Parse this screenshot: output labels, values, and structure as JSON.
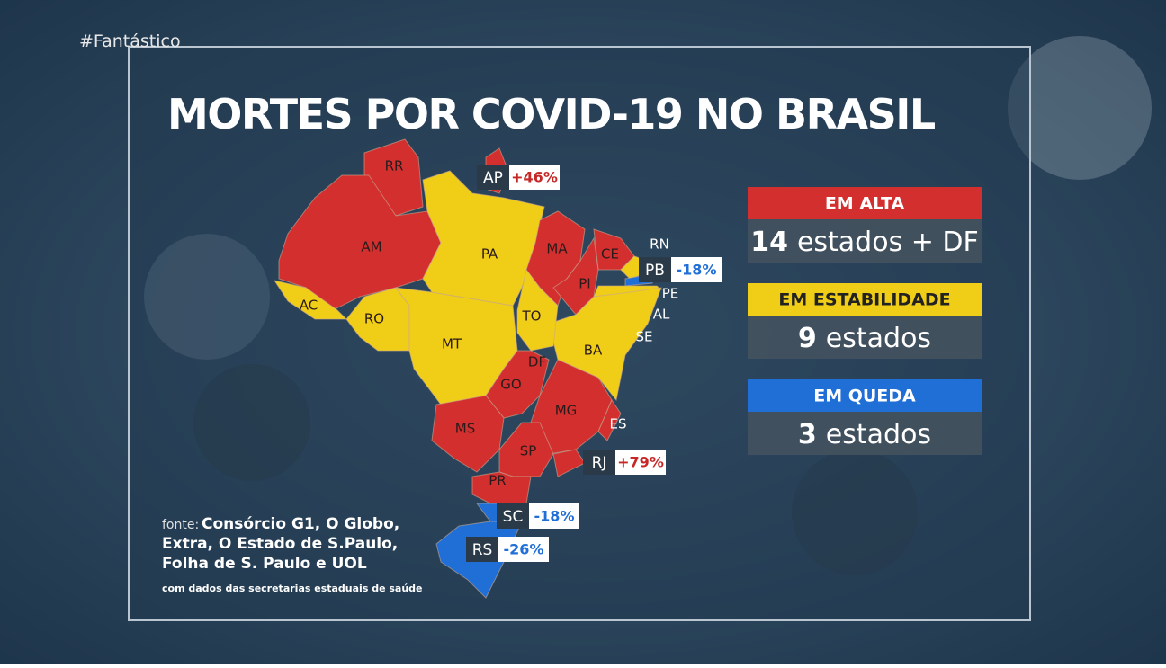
{
  "brand": "#Fantástico",
  "title": "MORTES POR COVID-19 NO BRASIL",
  "states": [
    {
      "label": "RR"
    },
    {
      "label": "AM"
    },
    {
      "label": "PA"
    },
    {
      "label": "AC"
    },
    {
      "label": "RO"
    },
    {
      "label": "MT"
    },
    {
      "label": "MA"
    },
    {
      "label": "CE"
    },
    {
      "label": "PI"
    },
    {
      "label": "TO"
    },
    {
      "label": "BA"
    },
    {
      "label": "DF"
    },
    {
      "label": "GO"
    },
    {
      "label": "MG"
    },
    {
      "label": "MS"
    },
    {
      "label": "SP"
    },
    {
      "label": "PR"
    },
    {
      "label": "RN"
    },
    {
      "label": "PE"
    },
    {
      "label": "AL"
    },
    {
      "label": "SE"
    },
    {
      "label": "ES"
    }
  ],
  "callouts": [
    {
      "state": "AP",
      "change": "+46%"
    },
    {
      "state": "PB",
      "change": "-18%"
    },
    {
      "state": "RJ",
      "change": "+79%"
    },
    {
      "state": "SC",
      "change": "-18%"
    },
    {
      "state": "RS",
      "change": "-26%"
    }
  ],
  "legend": [
    {
      "heading": "EM ALTA",
      "count": "14",
      "text": "estados + DF"
    },
    {
      "heading": "EM ESTABILIDADE",
      "count": "9",
      "text": "estados"
    },
    {
      "heading": "EM QUEDA",
      "count": "3",
      "text": "estados"
    }
  ],
  "source": {
    "prefix": "fonte:",
    "lines": [
      "Consórcio G1, O Globo,",
      "Extra, O Estado de S.Paulo,",
      "Folha de S. Paulo e UOL"
    ],
    "note": "com dados das secretarias estaduais de saúde"
  }
}
